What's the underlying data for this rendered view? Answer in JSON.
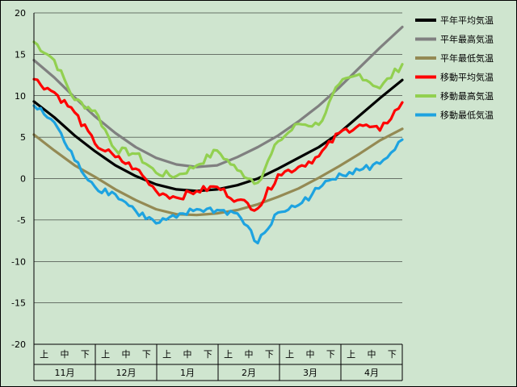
{
  "chart_data": {
    "type": "line",
    "title": "",
    "xlabel": "",
    "ylabel": "",
    "ylim": [
      -20,
      20
    ],
    "yticks": [
      -20,
      -15,
      -10,
      -5,
      0,
      5,
      10,
      15,
      20
    ],
    "grid": "horizontal",
    "legend_position": "right",
    "x_unit": "days from start of November",
    "xlim": [
      0,
      181
    ],
    "months": [
      {
        "label": "11月",
        "thirds": [
          "上",
          "中",
          "下"
        ]
      },
      {
        "label": "12月",
        "thirds": [
          "上",
          "中",
          "下"
        ]
      },
      {
        "label": "1月",
        "thirds": [
          "上",
          "中",
          "下"
        ]
      },
      {
        "label": "2月",
        "thirds": [
          "上",
          "中",
          "下"
        ]
      },
      {
        "label": "3月",
        "thirds": [
          "上",
          "中",
          "下"
        ]
      },
      {
        "label": "4月",
        "thirds": [
          "上",
          "中",
          "下"
        ]
      }
    ],
    "x": [
      0,
      10,
      20,
      30,
      40,
      50,
      60,
      70,
      80,
      90,
      100,
      110,
      120,
      130,
      140,
      150,
      160,
      170,
      181
    ],
    "series": [
      {
        "name": "平年最高気温",
        "color": "#808080",
        "values": [
          14.3,
          12.2,
          9.8,
          7.5,
          5.5,
          3.8,
          2.5,
          1.7,
          1.4,
          1.6,
          2.6,
          3.8,
          5.2,
          6.9,
          8.8,
          11.0,
          13.4,
          15.8,
          18.3
        ]
      },
      {
        "name": "平年平均気温",
        "color": "#000000",
        "values": [
          9.3,
          7.4,
          5.2,
          3.3,
          1.6,
          0.3,
          -0.7,
          -1.3,
          -1.5,
          -1.3,
          -0.8,
          0.0,
          1.2,
          2.5,
          3.8,
          5.5,
          7.6,
          9.7,
          11.9
        ]
      },
      {
        "name": "平年最低気温",
        "color": "#948a54",
        "values": [
          5.3,
          3.4,
          1.6,
          0.2,
          -1.3,
          -2.6,
          -3.7,
          -4.3,
          -4.4,
          -4.2,
          -3.8,
          -3.1,
          -2.2,
          -1.2,
          0.1,
          1.5,
          3.0,
          4.6,
          6.0
        ]
      },
      {
        "name": "移動平均気温",
        "color": "#ff0000",
        "values": [
          12.0,
          10.4,
          8.0,
          4.2,
          2.6,
          1.2,
          -1.5,
          -2.3,
          -1.5,
          -1.0,
          -2.6,
          -3.6,
          0.5,
          1.4,
          2.7,
          5.5,
          6.5,
          5.8,
          9.2
        ]
      },
      {
        "name": "移動最高気温",
        "color": "#92d050",
        "values": [
          16.5,
          14.3,
          9.5,
          8.2,
          3.5,
          3.0,
          0.7,
          0.3,
          1.6,
          3.4,
          1.0,
          -0.5,
          4.5,
          6.6,
          6.5,
          11.4,
          12.6,
          10.9,
          13.8
        ]
      },
      {
        "name": "移動最低気温",
        "color": "#1ea3e0",
        "values": [
          8.8,
          6.8,
          2.2,
          -1.0,
          -1.9,
          -3.9,
          -5.4,
          -4.7,
          -3.7,
          -3.8,
          -4.2,
          -7.8,
          -4.1,
          -3.2,
          -1.2,
          0.6,
          1.0,
          1.8,
          4.7
        ]
      }
    ],
    "legend_order": [
      "平年平均気温",
      "平年最高気温",
      "平年最低気温",
      "移動平均気温",
      "移動最高気温",
      "移動最低気温"
    ]
  }
}
